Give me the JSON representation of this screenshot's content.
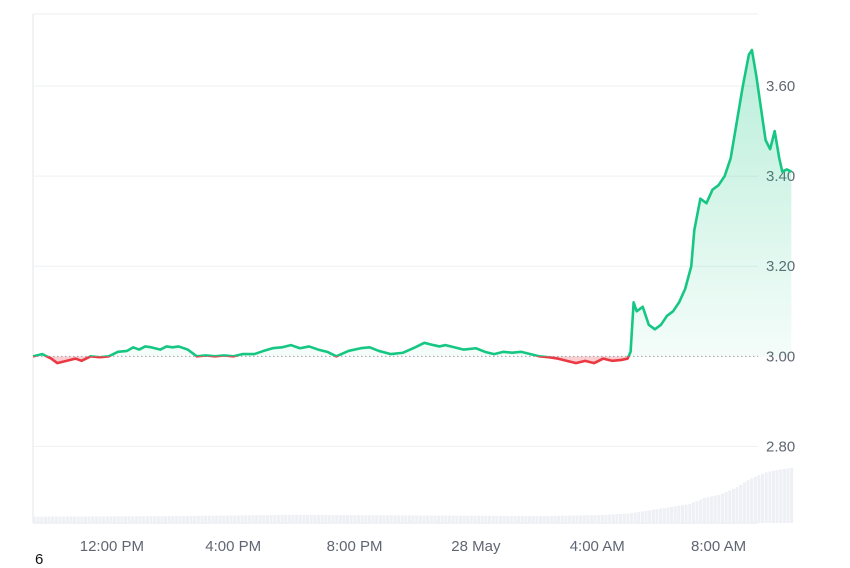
{
  "corner_text": "6",
  "chart_data": {
    "type": "area",
    "baseline": 3.0,
    "ylim": [
      2.63,
      3.76
    ],
    "y_ticks": [
      "2.80",
      "3.00",
      "3.20",
      "3.40",
      "3.60"
    ],
    "y_tick_values": [
      2.8,
      3.0,
      3.2,
      3.4,
      3.6
    ],
    "x_tick_labels": [
      "12:00 PM",
      "4:00 PM",
      "8:00 PM",
      "28 May",
      "4:00 AM",
      "8:00 AM"
    ],
    "x_tick_hours": [
      0,
      4,
      8,
      12,
      16,
      20
    ],
    "x_range_hours": [
      -2.6,
      21.3
    ],
    "colors": {
      "up": "#16c784",
      "down": "#ea3943",
      "grid": "#eef0f3",
      "volume": "#eef0f5",
      "baseline": "#9aa0aa"
    },
    "series": [
      {
        "values": [
          [
            -2.6,
            3.0
          ],
          [
            -2.3,
            3.005
          ],
          [
            -2.0,
            2.995
          ],
          [
            -1.8,
            2.985
          ],
          [
            -1.5,
            2.99
          ],
          [
            -1.2,
            2.995
          ],
          [
            -1.0,
            2.99
          ],
          [
            -0.7,
            3.0
          ],
          [
            -0.4,
            2.998
          ],
          [
            -0.1,
            3.0
          ],
          [
            0.2,
            3.01
          ],
          [
            0.5,
            3.012
          ],
          [
            0.7,
            3.02
          ],
          [
            0.9,
            3.015
          ],
          [
            1.1,
            3.022
          ],
          [
            1.3,
            3.02
          ],
          [
            1.6,
            3.015
          ],
          [
            1.8,
            3.022
          ],
          [
            2.0,
            3.02
          ],
          [
            2.2,
            3.022
          ],
          [
            2.5,
            3.015
          ],
          [
            2.8,
            3.0
          ],
          [
            3.1,
            3.002
          ],
          [
            3.4,
            3.0
          ],
          [
            3.7,
            3.002
          ],
          [
            4.0,
            3.0
          ],
          [
            4.3,
            3.005
          ],
          [
            4.7,
            3.005
          ],
          [
            5.0,
            3.012
          ],
          [
            5.3,
            3.018
          ],
          [
            5.6,
            3.02
          ],
          [
            5.9,
            3.025
          ],
          [
            6.2,
            3.018
          ],
          [
            6.5,
            3.022
          ],
          [
            6.8,
            3.015
          ],
          [
            7.1,
            3.01
          ],
          [
            7.4,
            3.0
          ],
          [
            7.8,
            3.012
          ],
          [
            8.2,
            3.018
          ],
          [
            8.5,
            3.02
          ],
          [
            8.8,
            3.012
          ],
          [
            9.2,
            3.005
          ],
          [
            9.6,
            3.008
          ],
          [
            10.0,
            3.02
          ],
          [
            10.3,
            3.03
          ],
          [
            10.6,
            3.025
          ],
          [
            10.8,
            3.022
          ],
          [
            11.0,
            3.025
          ],
          [
            11.3,
            3.02
          ],
          [
            11.6,
            3.015
          ],
          [
            12.0,
            3.018
          ],
          [
            12.3,
            3.01
          ],
          [
            12.6,
            3.005
          ],
          [
            12.9,
            3.01
          ],
          [
            13.2,
            3.008
          ],
          [
            13.5,
            3.01
          ],
          [
            13.8,
            3.005
          ],
          [
            14.1,
            3.0
          ],
          [
            14.4,
            2.998
          ],
          [
            14.7,
            2.995
          ],
          [
            15.0,
            2.99
          ],
          [
            15.3,
            2.985
          ],
          [
            15.6,
            2.99
          ],
          [
            15.9,
            2.985
          ],
          [
            16.2,
            2.995
          ],
          [
            16.5,
            2.99
          ],
          [
            16.8,
            2.992
          ],
          [
            17.0,
            2.995
          ],
          [
            17.1,
            3.01
          ],
          [
            17.2,
            3.12
          ],
          [
            17.3,
            3.1
          ],
          [
            17.5,
            3.11
          ],
          [
            17.7,
            3.07
          ],
          [
            17.9,
            3.06
          ],
          [
            18.1,
            3.07
          ],
          [
            18.3,
            3.09
          ],
          [
            18.5,
            3.1
          ],
          [
            18.7,
            3.12
          ],
          [
            18.9,
            3.15
          ],
          [
            19.1,
            3.2
          ],
          [
            19.2,
            3.28
          ],
          [
            19.4,
            3.35
          ],
          [
            19.6,
            3.34
          ],
          [
            19.8,
            3.37
          ],
          [
            20.0,
            3.38
          ],
          [
            20.2,
            3.4
          ],
          [
            20.3,
            3.42
          ],
          [
            20.4,
            3.44
          ],
          [
            20.6,
            3.52
          ],
          [
            20.8,
            3.6
          ],
          [
            21.0,
            3.67
          ],
          [
            21.1,
            3.68
          ],
          [
            21.25,
            3.62
          ],
          [
            21.4,
            3.55
          ],
          [
            21.55,
            3.48
          ],
          [
            21.7,
            3.46
          ],
          [
            21.85,
            3.5
          ],
          [
            22.0,
            3.44
          ],
          [
            22.1,
            3.41
          ],
          [
            22.25,
            3.415
          ],
          [
            22.4,
            3.41
          ]
        ]
      }
    ],
    "volume": [
      [
        -2.6,
        0.02
      ],
      [
        2.0,
        0.022
      ],
      [
        6.0,
        0.026
      ],
      [
        10.0,
        0.024
      ],
      [
        14.0,
        0.022
      ],
      [
        16.0,
        0.025
      ],
      [
        17.0,
        0.03
      ],
      [
        18.0,
        0.045
      ],
      [
        19.0,
        0.06
      ],
      [
        19.5,
        0.08
      ],
      [
        20.0,
        0.09
      ],
      [
        20.5,
        0.11
      ],
      [
        21.0,
        0.14
      ],
      [
        21.5,
        0.16
      ],
      [
        22.0,
        0.17
      ],
      [
        22.4,
        0.175
      ]
    ]
  }
}
